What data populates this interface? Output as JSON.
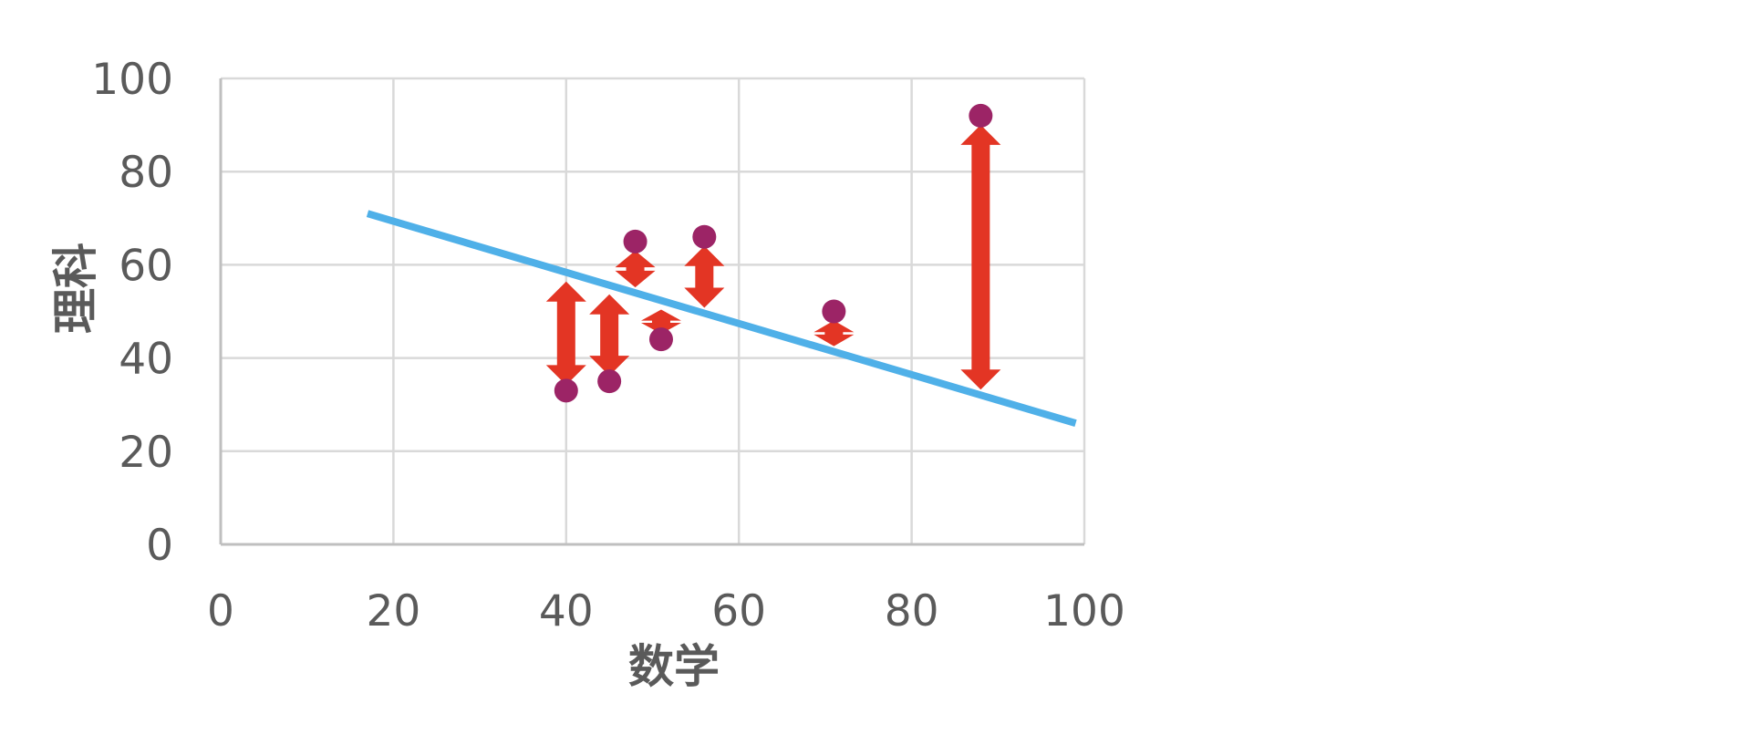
{
  "chart_data": {
    "type": "scatter",
    "xlabel": "数学",
    "ylabel": "理科",
    "xlim": [
      0,
      100
    ],
    "ylim": [
      0,
      100
    ],
    "x_ticks": [
      "0",
      "20",
      "40",
      "60",
      "80",
      "100"
    ],
    "y_ticks": [
      "0",
      "20",
      "40",
      "60",
      "80",
      "100"
    ],
    "grid": true,
    "legend": "none",
    "points": [
      {
        "x": 40,
        "y": 33
      },
      {
        "x": 45,
        "y": 35
      },
      {
        "x": 48,
        "y": 65
      },
      {
        "x": 51,
        "y": 44
      },
      {
        "x": 56,
        "y": 66
      },
      {
        "x": 71,
        "y": 50
      },
      {
        "x": 88,
        "y": 92
      }
    ],
    "regression_line": {
      "start": {
        "x": 17,
        "y": 71
      },
      "end": {
        "x": 99,
        "y": 26
      }
    },
    "residual_arrows": true,
    "colors": {
      "points": "#9c2466",
      "regression_line": "#4fb0e8",
      "residual_arrows": "#e33524",
      "grid": "#d9d9d9",
      "text": "#5a5a5a"
    }
  }
}
